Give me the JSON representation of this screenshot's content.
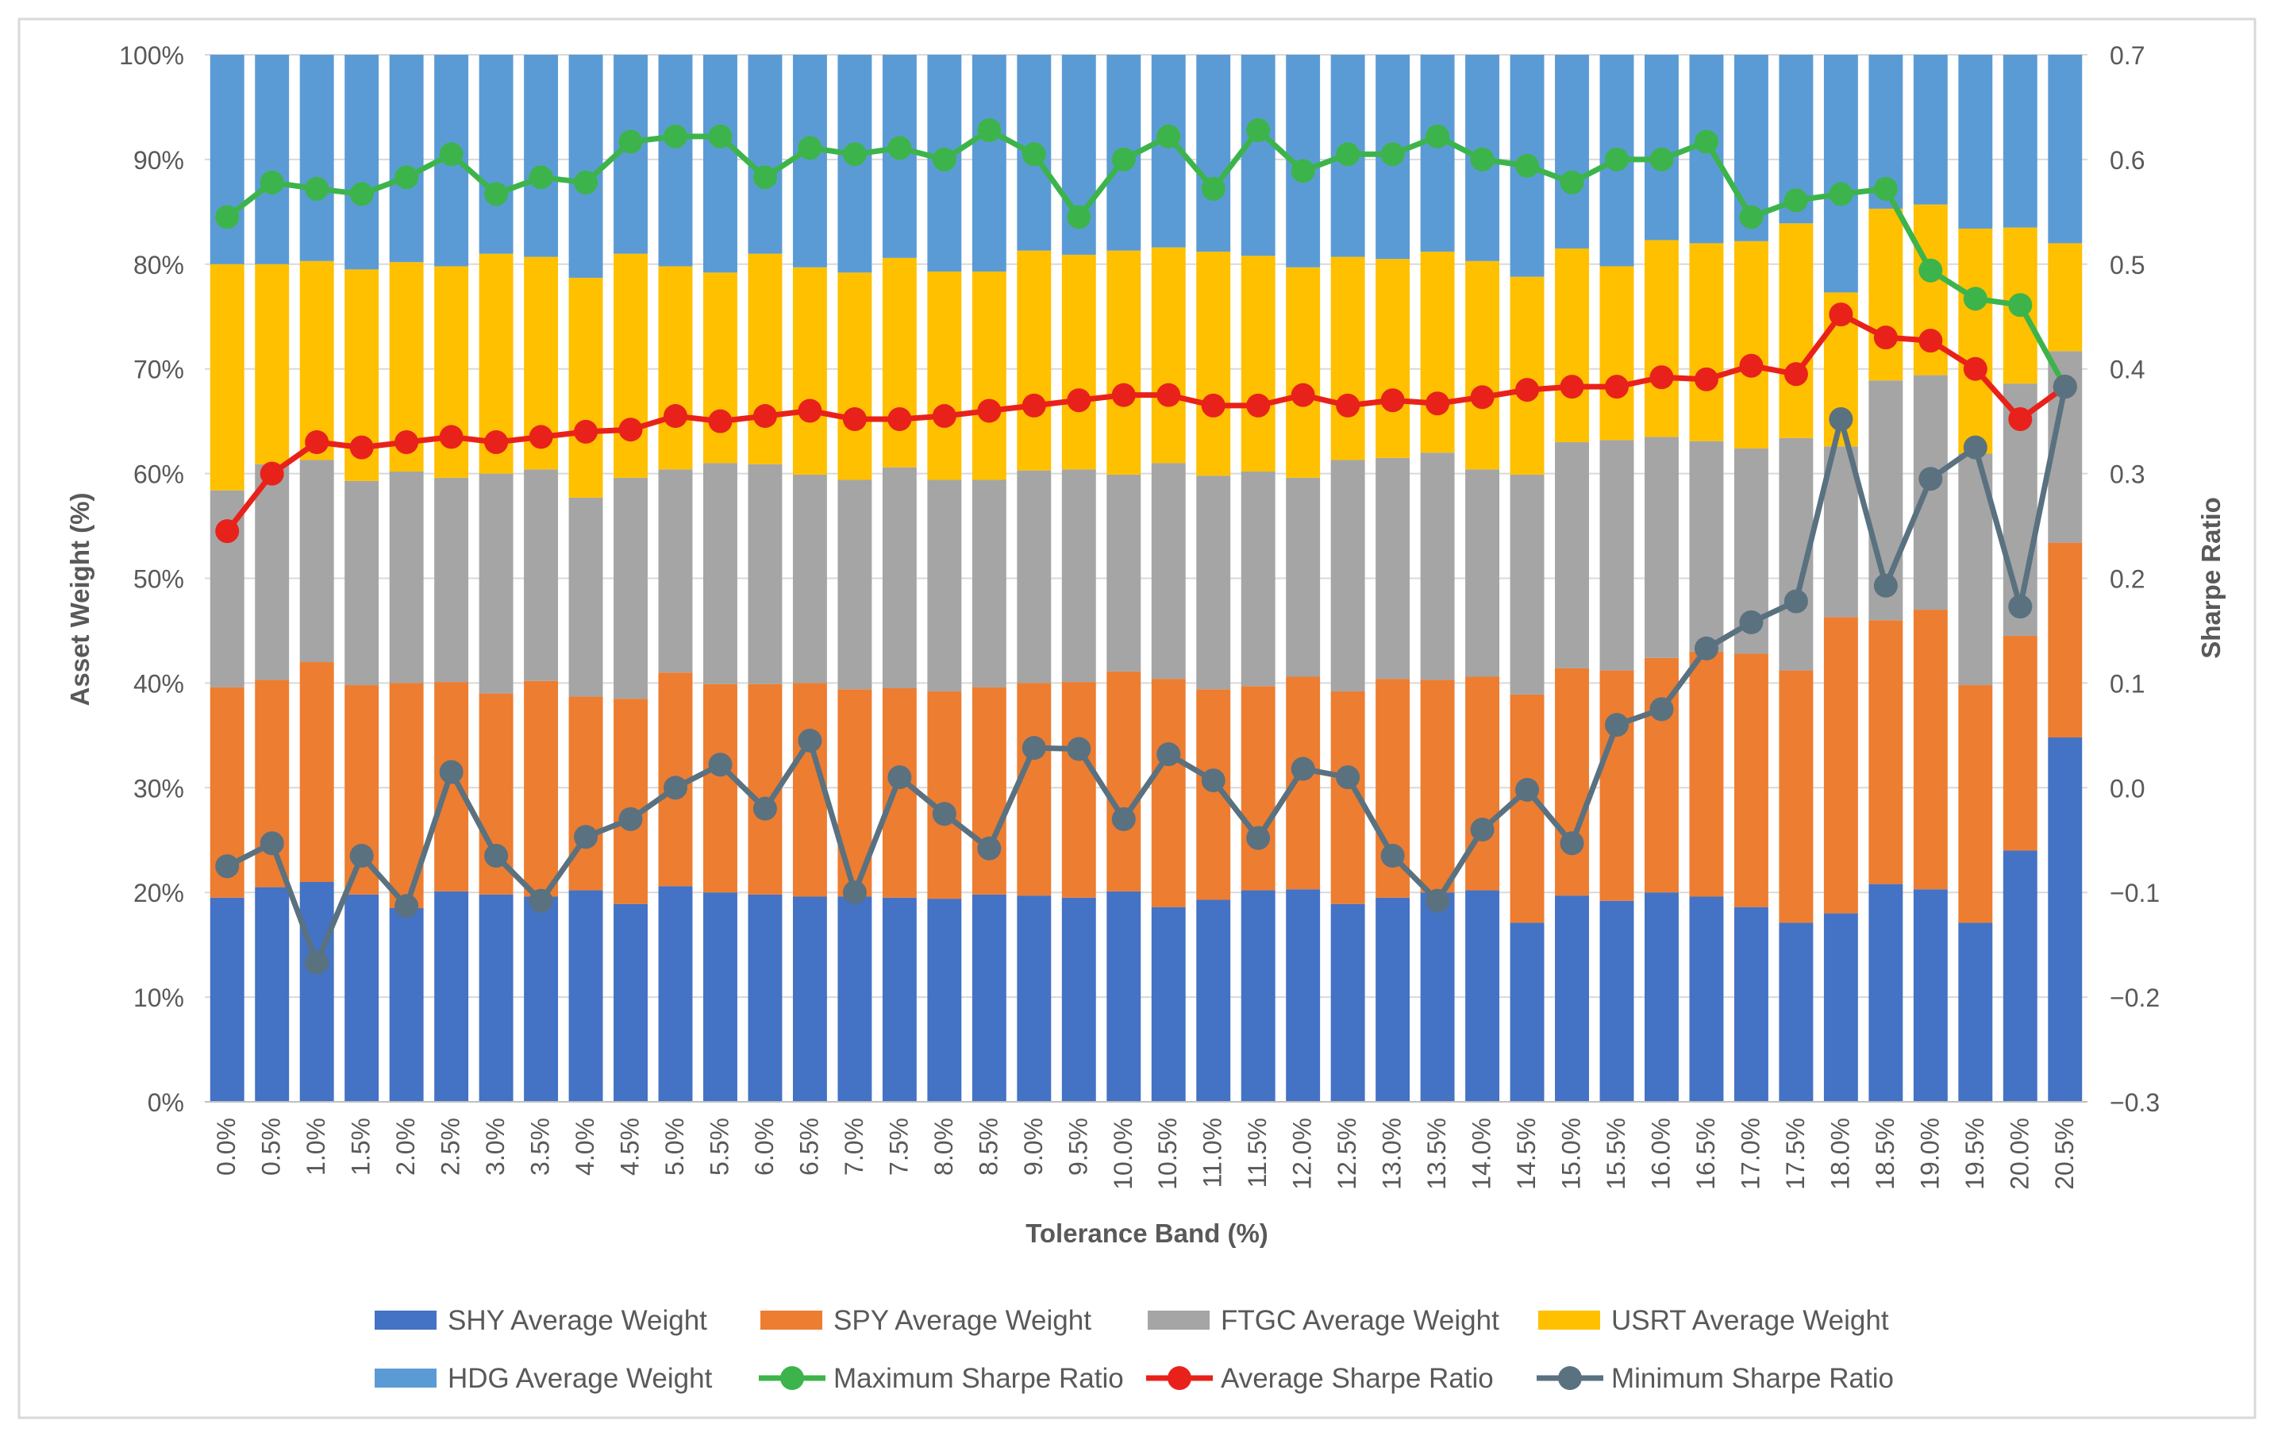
{
  "chart_data": {
    "type": "bar",
    "stacked": true,
    "xlabel": "Tolerance Band (%)",
    "ylabel": "Asset Weight (%)",
    "y2label": "Sharpe Ratio",
    "ylim": [
      0,
      100
    ],
    "y2lim": [
      -0.3,
      0.7
    ],
    "y_ticks": [
      "0%",
      "10%",
      "20%",
      "30%",
      "40%",
      "50%",
      "60%",
      "70%",
      "80%",
      "90%",
      "100%"
    ],
    "y2_ticks": [
      "−0.3",
      "−0.2",
      "−0.1",
      "0.0",
      "0.1",
      "0.2",
      "0.3",
      "0.4",
      "0.5",
      "0.6",
      "0.7"
    ],
    "grid": "horizontal",
    "legend_position": "bottom",
    "categories": [
      "0.0%",
      "0.5%",
      "1.0%",
      "1.5%",
      "2.0%",
      "2.5%",
      "3.0%",
      "3.5%",
      "4.0%",
      "4.5%",
      "5.0%",
      "5.5%",
      "6.0%",
      "6.5%",
      "7.0%",
      "7.5%",
      "8.0%",
      "8.5%",
      "9.0%",
      "9.5%",
      "10.0%",
      "10.5%",
      "11.0%",
      "11.5%",
      "12.0%",
      "12.5%",
      "13.0%",
      "13.5%",
      "14.0%",
      "14.5%",
      "15.0%",
      "15.5%",
      "16.0%",
      "16.5%",
      "17.0%",
      "17.5%",
      "18.0%",
      "18.5%",
      "19.0%",
      "19.5%",
      "20.0%",
      "20.5%"
    ],
    "bar_series": [
      {
        "name": "SHY Average Weight",
        "color": "#4472C4",
        "values": [
          19.5,
          20.5,
          21.0,
          19.8,
          18.5,
          20.1,
          19.8,
          19.6,
          20.2,
          18.9,
          20.6,
          20.0,
          19.8,
          19.6,
          19.6,
          19.5,
          19.4,
          19.8,
          19.7,
          19.5,
          20.1,
          18.6,
          19.3,
          20.2,
          20.3,
          18.9,
          19.5,
          20.0,
          20.2,
          17.1,
          19.7,
          19.2,
          20.0,
          19.6,
          18.6,
          17.1,
          18.0,
          20.8,
          20.3,
          17.1,
          24.0,
          34.8
        ]
      },
      {
        "name": "SPY Average Weight",
        "color": "#ED7D31",
        "values": [
          20.1,
          19.8,
          21.0,
          20.0,
          21.5,
          20.0,
          19.2,
          20.6,
          18.5,
          19.6,
          20.4,
          19.9,
          20.1,
          20.4,
          19.8,
          20.0,
          19.8,
          19.8,
          20.3,
          20.6,
          21.0,
          21.8,
          20.1,
          19.5,
          20.3,
          20.3,
          20.9,
          20.3,
          20.4,
          21.8,
          21.7,
          22.0,
          22.4,
          23.4,
          24.2,
          24.1,
          28.3,
          25.2,
          26.7,
          22.7,
          20.5,
          18.6
        ]
      },
      {
        "name": "FTGC Average Weight",
        "color": "#A5A5A5",
        "values": [
          18.8,
          20.6,
          19.3,
          19.5,
          20.2,
          19.5,
          21.0,
          20.2,
          19.0,
          21.1,
          19.4,
          21.1,
          21.0,
          19.9,
          20.0,
          21.1,
          20.2,
          19.8,
          20.3,
          20.3,
          18.8,
          20.6,
          20.4,
          20.5,
          19.0,
          22.1,
          21.1,
          21.7,
          19.8,
          21.0,
          21.6,
          22.0,
          21.1,
          20.1,
          19.6,
          22.2,
          16.3,
          22.9,
          22.4,
          22.1,
          24.1,
          18.3
        ]
      },
      {
        "name": "USRT Average Weight",
        "color": "#FFC000",
        "values": [
          21.6,
          19.1,
          19.0,
          20.2,
          20.0,
          20.2,
          21.0,
          20.3,
          21.0,
          21.4,
          19.4,
          18.2,
          20.1,
          19.8,
          19.8,
          20.0,
          19.9,
          19.9,
          21.0,
          20.5,
          21.4,
          20.6,
          21.4,
          20.6,
          20.1,
          19.4,
          19.0,
          19.2,
          19.9,
          18.9,
          18.5,
          16.6,
          18.8,
          18.9,
          19.8,
          20.5,
          14.7,
          16.4,
          16.3,
          21.5,
          14.9,
          10.3
        ]
      },
      {
        "name": "HDG Average Weight",
        "color": "#5B9BD5",
        "values": [
          20.0,
          20.0,
          19.7,
          20.5,
          19.8,
          20.2,
          19.0,
          19.3,
          21.3,
          19.0,
          20.2,
          20.8,
          19.0,
          20.3,
          20.8,
          19.4,
          20.7,
          20.7,
          18.7,
          19.1,
          18.7,
          18.4,
          18.8,
          19.2,
          20.3,
          19.3,
          19.5,
          18.8,
          19.7,
          21.2,
          18.5,
          20.2,
          17.7,
          18.0,
          17.8,
          16.1,
          22.7,
          14.7,
          14.3,
          16.6,
          16.5,
          18.0
        ]
      }
    ],
    "line_series": [
      {
        "name": "Maximum Sharpe Ratio",
        "color": "#3CB44B",
        "values": [
          0.545,
          0.578,
          0.572,
          0.567,
          0.583,
          0.605,
          0.567,
          0.583,
          0.578,
          0.617,
          0.622,
          0.622,
          0.583,
          0.611,
          0.605,
          0.611,
          0.6,
          0.628,
          0.605,
          0.545,
          0.6,
          0.622,
          0.572,
          0.628,
          0.589,
          0.605,
          0.605,
          0.622,
          0.6,
          0.594,
          0.578,
          0.6,
          0.6,
          0.617,
          0.545,
          0.561,
          0.567,
          0.572,
          0.494,
          0.467,
          0.461,
          0.383
        ]
      },
      {
        "name": "Average Sharpe Ratio",
        "color": "#E8221B",
        "values": [
          0.245,
          0.3,
          0.33,
          0.325,
          0.33,
          0.335,
          0.33,
          0.335,
          0.34,
          0.342,
          0.355,
          0.35,
          0.355,
          0.36,
          0.352,
          0.352,
          0.355,
          0.36,
          0.365,
          0.37,
          0.375,
          0.375,
          0.365,
          0.365,
          0.375,
          0.365,
          0.37,
          0.367,
          0.373,
          0.38,
          0.383,
          0.383,
          0.392,
          0.39,
          0.403,
          0.395,
          0.452,
          0.43,
          0.427,
          0.4,
          0.352,
          0.383
        ]
      },
      {
        "name": "Minimum Sharpe Ratio",
        "color": "#5A7180",
        "values": [
          -0.075,
          -0.053,
          -0.167,
          -0.065,
          -0.113,
          0.015,
          -0.065,
          -0.108,
          -0.047,
          -0.03,
          0.0,
          0.022,
          -0.02,
          0.045,
          -0.1,
          0.01,
          -0.025,
          -0.058,
          0.038,
          0.037,
          -0.03,
          0.032,
          0.007,
          -0.048,
          0.018,
          0.01,
          -0.065,
          -0.108,
          -0.04,
          -0.002,
          -0.053,
          0.06,
          0.075,
          0.133,
          0.158,
          0.178,
          0.352,
          0.193,
          0.295,
          0.325,
          0.173,
          0.383
        ]
      }
    ]
  }
}
